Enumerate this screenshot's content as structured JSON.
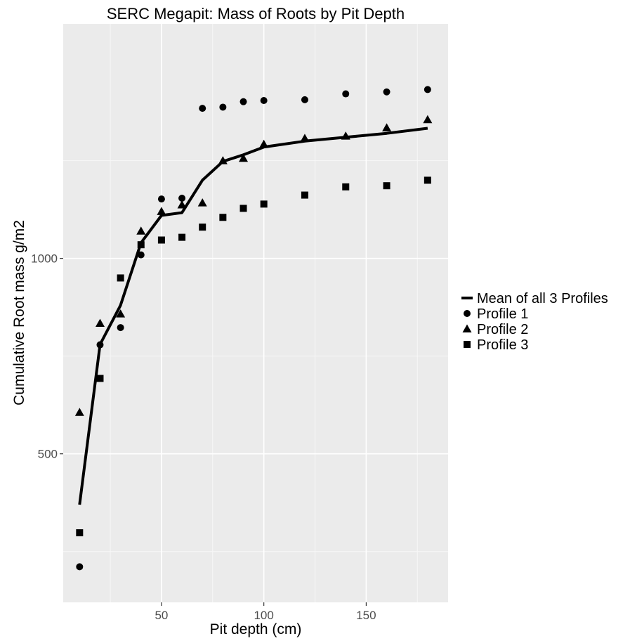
{
  "chart_data": {
    "type": "scatter",
    "title": "SERC Megapit: Mass of Roots by Pit Depth",
    "xlabel": "Pit depth (cm)",
    "ylabel": "Cumulative Root mass g/m2",
    "xlim": [
      2,
      190
    ],
    "ylim": [
      120,
      1600
    ],
    "x_ticks": [
      50,
      100,
      150
    ],
    "x_tick_labels": [
      "50",
      "100",
      "150"
    ],
    "y_ticks": [
      500,
      1000
    ],
    "y_tick_labels": [
      "500",
      "1000"
    ],
    "grid": true,
    "legend": "right",
    "legend_entries": [
      "Mean of all 3 Profiles",
      "Profile 1",
      "Profile 2",
      "Profile 3"
    ],
    "series": [
      {
        "name": "Mean of all 3 Profiles",
        "kind": "line",
        "x": [
          10,
          20,
          30,
          40,
          50,
          60,
          70,
          80,
          90,
          100,
          120,
          140,
          160,
          180
        ],
        "y": [
          370,
          780,
          880,
          1040,
          1110,
          1117,
          1200,
          1248,
          1265,
          1285,
          1300,
          1310,
          1320,
          1333
        ]
      },
      {
        "name": "Profile 1",
        "kind": "point",
        "shape": "circle",
        "x": [
          10,
          20,
          30,
          40,
          50,
          60,
          70,
          80,
          90,
          100,
          120,
          140,
          160,
          180
        ],
        "y": [
          211,
          779,
          823,
          1009,
          1152,
          1154,
          1384,
          1387,
          1401,
          1404,
          1406,
          1421,
          1426,
          1432
        ]
      },
      {
        "name": "Profile 2",
        "kind": "point",
        "shape": "triangle",
        "x": [
          10,
          20,
          30,
          40,
          50,
          60,
          70,
          80,
          90,
          100,
          120,
          140,
          160,
          180
        ],
        "y": [
          606,
          834,
          858,
          1070,
          1120,
          1137,
          1142,
          1250,
          1256,
          1292,
          1307,
          1313,
          1334,
          1355
        ]
      },
      {
        "name": "Profile 3",
        "kind": "point",
        "shape": "square",
        "x": [
          10,
          20,
          30,
          40,
          50,
          60,
          70,
          80,
          90,
          100,
          120,
          140,
          160,
          180
        ],
        "y": [
          298,
          693,
          950,
          1035,
          1047,
          1054,
          1080,
          1105,
          1128,
          1139,
          1162,
          1183,
          1186,
          1200
        ]
      }
    ]
  },
  "colors": {
    "panel": "#ebebeb",
    "grid_major": "#ffffff",
    "ink": "#000000",
    "tick_text": "#4d4d4d"
  }
}
